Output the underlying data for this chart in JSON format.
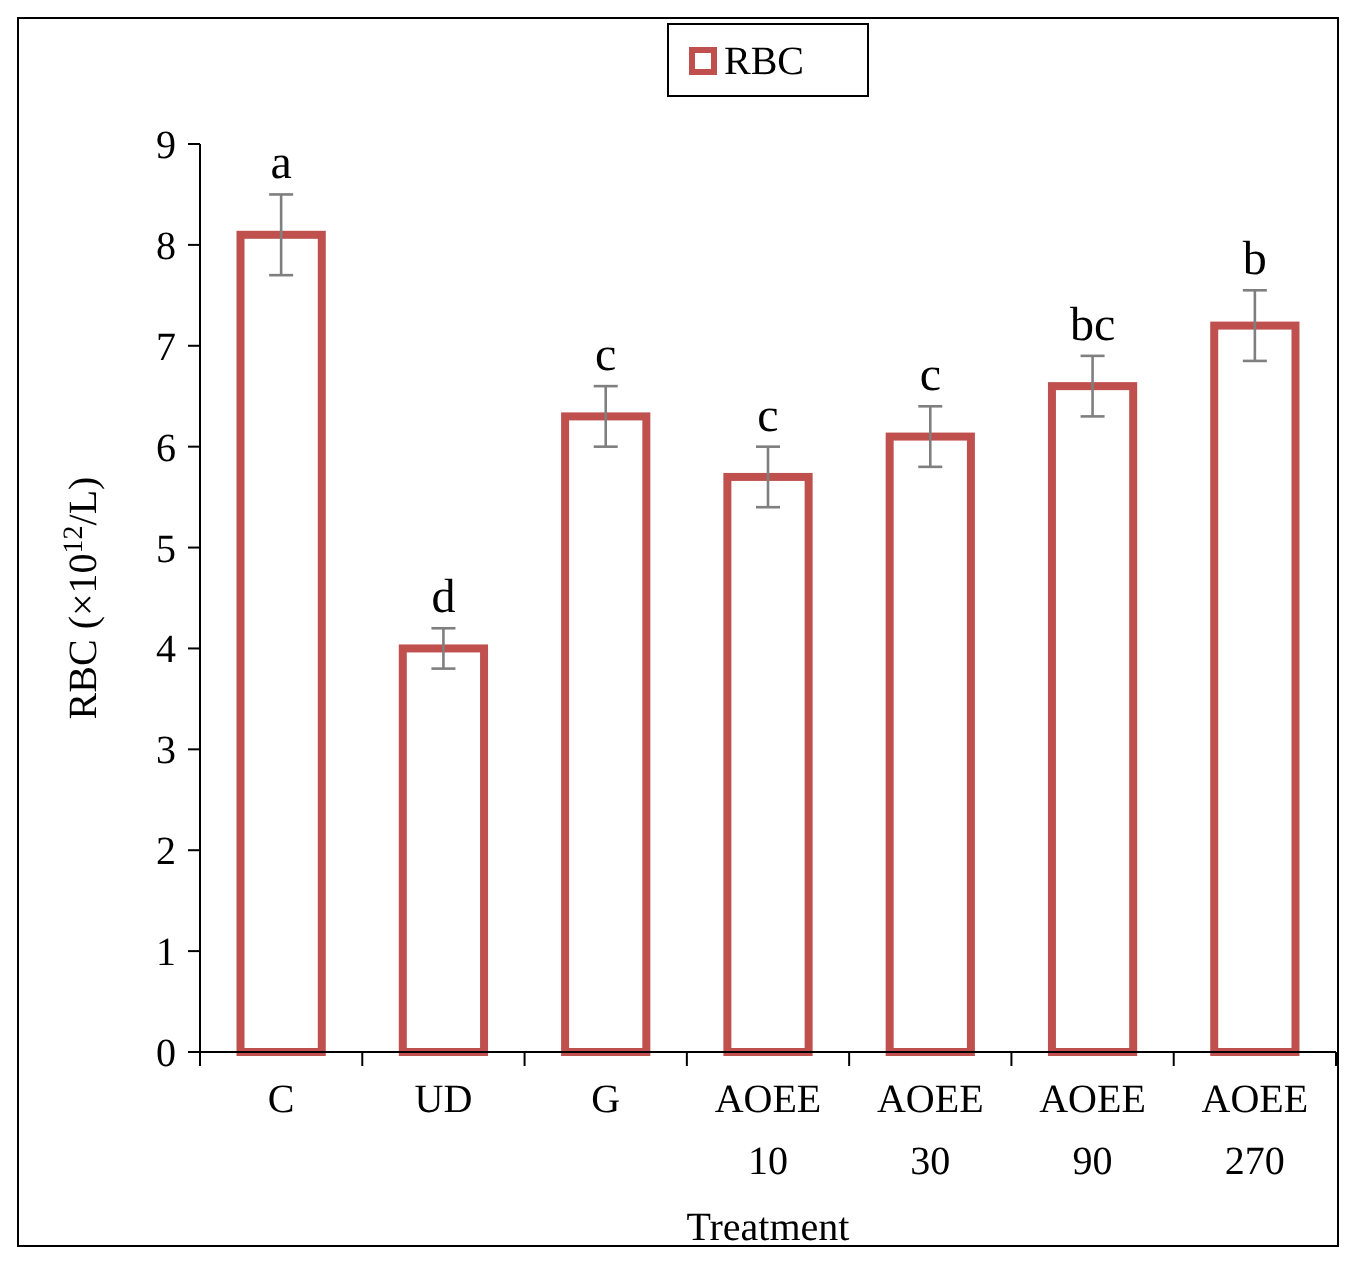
{
  "chart_data": {
    "type": "bar",
    "xlabel": "Treatment",
    "ylabel": "RBC (×10$^{12}$/L)",
    "categories": [
      "C",
      "UD",
      "G",
      "AOEE 10",
      "AOEE 30",
      "AOEE 90",
      "AOEE 270"
    ],
    "series": [
      {
        "name": "RBC",
        "color": "#c0504d",
        "values": [
          8.1,
          4.0,
          6.3,
          5.7,
          6.1,
          6.6,
          7.2
        ],
        "errors": [
          0.4,
          0.2,
          0.3,
          0.3,
          0.3,
          0.3,
          0.35
        ]
      }
    ],
    "ylim": [
      0,
      9
    ],
    "yticks": [
      0,
      1,
      2,
      3,
      4,
      5,
      6,
      7,
      8,
      9
    ],
    "grid": false,
    "legend": "top",
    "annotations": [
      {
        "text": "a",
        "x": "C",
        "y": 8.5
      },
      {
        "text": "d",
        "x": "UD",
        "y": 4.2
      },
      {
        "text": "c",
        "x": "G",
        "y": 6.6
      },
      {
        "text": "c",
        "x": "AOEE 10",
        "y": 6.0
      },
      {
        "text": "c",
        "x": "AOEE 30",
        "y": 6.4
      },
      {
        "text": "bc",
        "x": "AOEE 90",
        "y": 6.9
      },
      {
        "text": "b",
        "x": "AOEE 270",
        "y": 7.55
      }
    ]
  }
}
